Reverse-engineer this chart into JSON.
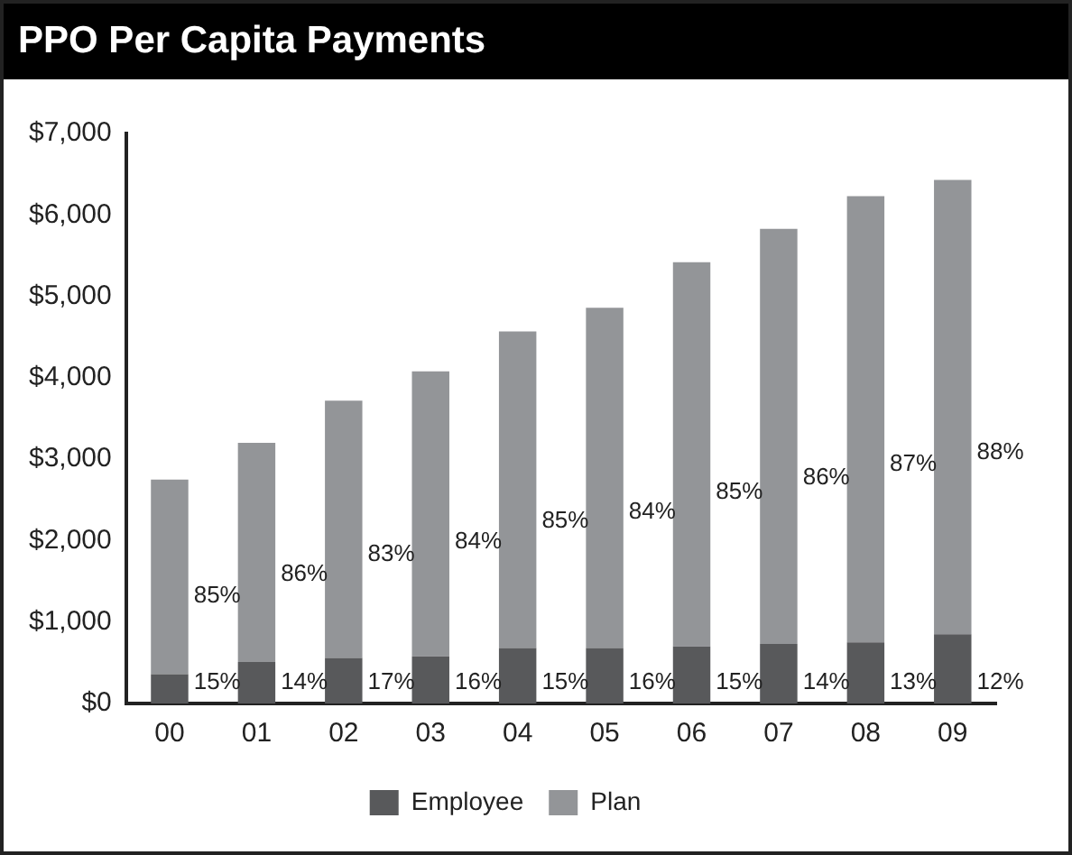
{
  "chart_data": {
    "type": "bar",
    "title": "PPO Per Capita Payments",
    "categories": [
      "00",
      "01",
      "02",
      "03",
      "04",
      "05",
      "06",
      "07",
      "08",
      "09"
    ],
    "stacked": true,
    "series": [
      {
        "name": "Employee",
        "color": "#58595b",
        "values": [
          360,
          510,
          560,
          580,
          680,
          680,
          700,
          730,
          750,
          850
        ]
      },
      {
        "name": "Plan",
        "color": "#939598",
        "values": [
          2390,
          2690,
          3160,
          3500,
          3890,
          4180,
          4720,
          5100,
          5480,
          5580
        ]
      }
    ],
    "annotations": [
      "15%",
      "14%",
      "17%",
      "16%",
      "15%",
      "16%",
      "15%",
      "14%",
      "13%",
      "12%",
      "85%",
      "86%",
      "83%",
      "84%",
      "85%",
      "84%",
      "85%",
      "86%",
      "87%",
      "88%"
    ],
    "ylim": [
      0,
      7000
    ],
    "yticks": [
      {
        "value": 0,
        "label": "$0"
      },
      {
        "value": 1000,
        "label": "$1,000"
      },
      {
        "value": 2000,
        "label": "$2,000"
      },
      {
        "value": 3000,
        "label": "$3,000"
      },
      {
        "value": 4000,
        "label": "$4,000"
      },
      {
        "value": 5000,
        "label": "$5,000"
      },
      {
        "value": 6000,
        "label": "$6,000"
      },
      {
        "value": 7000,
        "label": "$7,000"
      }
    ],
    "grid": false,
    "legend": "bottom"
  }
}
